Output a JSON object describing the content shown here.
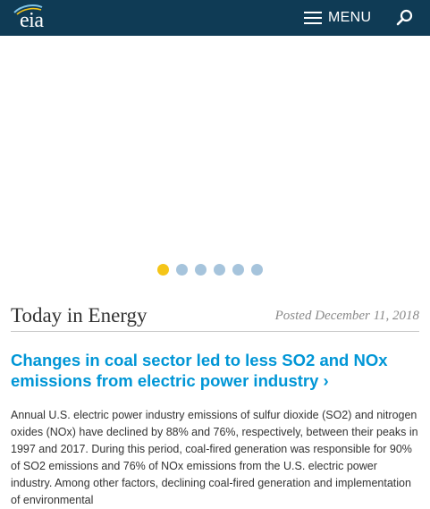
{
  "header": {
    "logo_text": "eia",
    "menu_label": "MENU",
    "search_icon": "search-icon",
    "menu_icon": "hamburger-menu-icon",
    "background_color": "#0f3b55"
  },
  "carousel": {
    "slide_count": 6,
    "active_index": 0,
    "active_color": "#f5c518",
    "inactive_color": "#a6c4dc"
  },
  "section": {
    "title": "Today in Energy",
    "posted": "Posted December 11, 2018"
  },
  "article": {
    "headline": "Changes in coal sector led to less SO2 and NOx emissions from electric power industry ›",
    "headline_color": "#0096d6",
    "body": "Annual U.S. electric power industry emissions of sulfur dioxide (SO2) and nitrogen oxides (NOx) have declined by 88% and 76%, respectively, between their peaks in 1997 and 2017. During this period, coal-fired generation was responsible for 90% of SO2 emissions and 76% of NOx emissions from the U.S. electric power industry. Among other factors, declining coal-fired generation and implementation of environmental"
  }
}
